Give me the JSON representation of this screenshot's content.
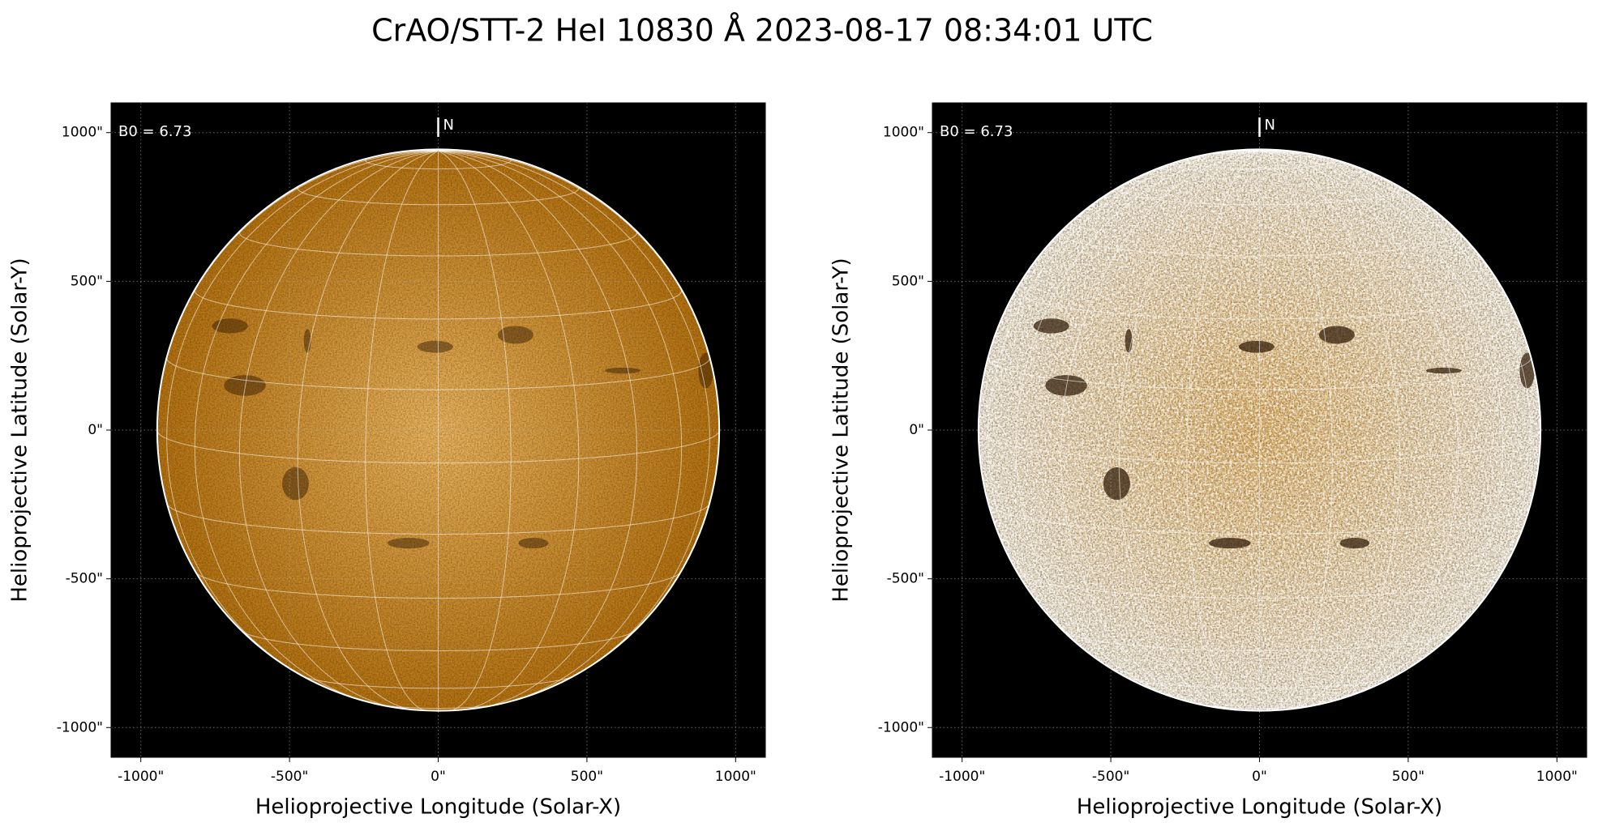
{
  "title": "CrAO/STT-2 HeI 10830 Å 2023-08-17 08:34:01 UTC",
  "chart_data": [
    {
      "type": "solar-image",
      "xlabel": "Helioprojective Longitude (Solar-X)",
      "ylabel": "Helioprojective Latitude (Solar-Y)",
      "annotation": "B0 = 6.73",
      "b0": 6.73,
      "north_label": "N",
      "disk_radius": 945,
      "graticule_step": 15,
      "xlim": [
        -1100,
        1100
      ],
      "ylim": [
        -1100,
        1100
      ],
      "xticks": [
        {
          "value": -1000,
          "label": "-1000\""
        },
        {
          "value": -500,
          "label": "-500\""
        },
        {
          "value": 0,
          "label": "0\""
        },
        {
          "value": 500,
          "label": "500\""
        },
        {
          "value": 1000,
          "label": "1000\""
        }
      ],
      "yticks": [
        {
          "value": -1000,
          "label": "-1000\""
        },
        {
          "value": -500,
          "label": "-500\""
        },
        {
          "value": 0,
          "label": "0\""
        },
        {
          "value": 500,
          "label": "500\""
        },
        {
          "value": 1000,
          "label": "1000\""
        }
      ],
      "grid": true,
      "colors": {
        "center": "#f0b860",
        "limb": "#b87410"
      }
    },
    {
      "type": "solar-image",
      "xlabel": "Helioprojective Longitude (Solar-X)",
      "ylabel": "Helioprojective Latitude (Solar-Y)",
      "annotation": "B0 = 6.73",
      "b0": 6.73,
      "north_label": "N",
      "disk_radius": 945,
      "graticule_step": 15,
      "xlim": [
        -1100,
        1100
      ],
      "ylim": [
        -1100,
        1100
      ],
      "xticks": [
        {
          "value": -1000,
          "label": "-1000\""
        },
        {
          "value": -500,
          "label": "-500\""
        },
        {
          "value": 0,
          "label": "0\""
        },
        {
          "value": 500,
          "label": "500\""
        },
        {
          "value": 1000,
          "label": "1000\""
        }
      ],
      "yticks": [
        {
          "value": -1000,
          "label": "-1000\""
        },
        {
          "value": -500,
          "label": "-500\""
        },
        {
          "value": 0,
          "label": "0\""
        },
        {
          "value": 500,
          "label": "500\""
        },
        {
          "value": 1000,
          "label": "1000\""
        }
      ],
      "grid": true,
      "colors": {
        "center": "#f2c070",
        "limb": "#fff4e0"
      }
    }
  ]
}
